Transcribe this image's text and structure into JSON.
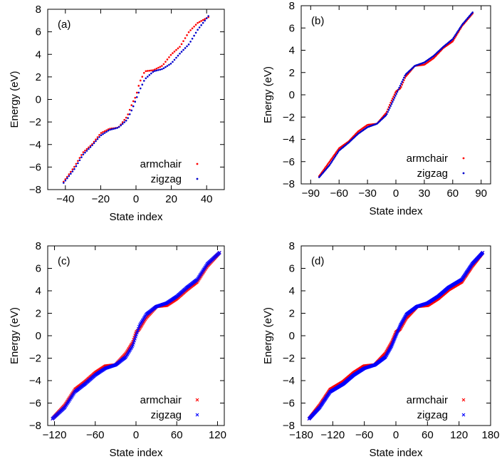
{
  "chart_data": [
    {
      "type": "scatter",
      "panel_label": "(a)",
      "xlabel": "State index",
      "ylabel": "Energy (eV)",
      "xlim": [
        -50,
        50
      ],
      "ylim": [
        -8,
        8
      ],
      "xticks": [
        -40,
        -20,
        0,
        20,
        40
      ],
      "yticks": [
        -8,
        -6,
        -4,
        -2,
        0,
        2,
        4,
        6,
        8
      ],
      "legend_position": "bottom-right",
      "marker": "dot",
      "series": [
        {
          "name": "armchair",
          "color": "#ff0000",
          "n": 82,
          "x": [
            -41,
            -35,
            -30,
            -25,
            -20,
            -15,
            -10,
            -5,
            -2,
            0,
            2,
            5,
            10,
            15,
            20,
            25,
            30,
            35,
            41
          ],
          "y": [
            -7.3,
            -6.0,
            -4.7,
            -4.0,
            -3.0,
            -2.6,
            -2.5,
            -1.5,
            -0.3,
            0.3,
            1.5,
            2.5,
            2.6,
            3.0,
            4.0,
            4.7,
            6.0,
            6.8,
            7.3
          ]
        },
        {
          "name": "zigzag",
          "color": "#0000cc",
          "n": 82,
          "x": [
            -41,
            -35,
            -30,
            -25,
            -20,
            -15,
            -10,
            -5,
            -2,
            0,
            2,
            5,
            10,
            15,
            20,
            25,
            30,
            35,
            41
          ],
          "y": [
            -7.4,
            -6.2,
            -4.9,
            -4.1,
            -3.2,
            -2.7,
            -2.5,
            -1.8,
            -0.8,
            0.0,
            0.8,
            1.8,
            2.5,
            2.7,
            3.2,
            4.1,
            4.9,
            6.2,
            7.4
          ]
        }
      ]
    },
    {
      "type": "scatter",
      "panel_label": "(b)",
      "xlabel": "State index",
      "ylabel": "Energy (eV)",
      "xlim": [
        -100,
        100
      ],
      "ylim": [
        -8,
        8
      ],
      "xticks": [
        -90,
        -60,
        -30,
        0,
        30,
        60,
        90
      ],
      "yticks": [
        -8,
        -6,
        -4,
        -2,
        0,
        2,
        4,
        6,
        8
      ],
      "legend_position": "bottom-right",
      "marker": "dot",
      "series": [
        {
          "name": "armchair",
          "color": "#ff0000",
          "n": 162,
          "x": [
            -81,
            -70,
            -60,
            -50,
            -40,
            -30,
            -20,
            -10,
            -5,
            0,
            5,
            10,
            20,
            30,
            40,
            50,
            60,
            70,
            81
          ],
          "y": [
            -7.3,
            -6.0,
            -4.8,
            -4.2,
            -3.3,
            -2.7,
            -2.6,
            -1.6,
            -0.6,
            0.3,
            0.6,
            1.6,
            2.6,
            2.7,
            3.3,
            4.2,
            4.8,
            6.2,
            7.3
          ]
        },
        {
          "name": "zigzag",
          "color": "#0000cc",
          "n": 162,
          "x": [
            -81,
            -70,
            -60,
            -50,
            -40,
            -30,
            -20,
            -10,
            -5,
            0,
            5,
            10,
            20,
            30,
            40,
            50,
            60,
            70,
            81
          ],
          "y": [
            -7.4,
            -6.3,
            -5.0,
            -4.3,
            -3.5,
            -2.9,
            -2.6,
            -1.8,
            -0.9,
            0.0,
            0.9,
            1.8,
            2.6,
            2.9,
            3.5,
            4.3,
            5.0,
            6.3,
            7.4
          ]
        }
      ]
    },
    {
      "type": "scatter",
      "panel_label": "(c)",
      "xlabel": "State index",
      "ylabel": "Energy (eV)",
      "xlim": [
        -130,
        130
      ],
      "ylim": [
        -8,
        8
      ],
      "xticks": [
        -120,
        -60,
        0,
        60,
        120
      ],
      "yticks": [
        -8,
        -6,
        -4,
        -2,
        0,
        2,
        4,
        6,
        8
      ],
      "legend_position": "bottom-right",
      "marker": "cross",
      "series": [
        {
          "name": "armchair",
          "color": "#ff0000",
          "n": 246,
          "x": [
            -123,
            -105,
            -90,
            -75,
            -60,
            -45,
            -30,
            -15,
            -5,
            0,
            5,
            15,
            30,
            45,
            60,
            75,
            90,
            105,
            123
          ],
          "y": [
            -7.4,
            -6.2,
            -4.8,
            -4.1,
            -3.3,
            -2.7,
            -2.6,
            -1.6,
            -0.6,
            0.3,
            0.6,
            1.6,
            2.6,
            2.7,
            3.3,
            4.1,
            4.8,
            6.2,
            7.4
          ]
        },
        {
          "name": "zigzag",
          "color": "#0000ff",
          "n": 246,
          "x": [
            -123,
            -105,
            -90,
            -75,
            -60,
            -45,
            -30,
            -15,
            -5,
            0,
            5,
            15,
            30,
            45,
            60,
            75,
            90,
            105,
            123
          ],
          "y": [
            -7.4,
            -6.4,
            -5.0,
            -4.3,
            -3.5,
            -2.9,
            -2.6,
            -1.9,
            -0.9,
            0.0,
            0.9,
            1.9,
            2.6,
            2.9,
            3.5,
            4.3,
            5.0,
            6.4,
            7.4
          ]
        }
      ]
    },
    {
      "type": "scatter",
      "panel_label": "(d)",
      "xlabel": "State index",
      "ylabel": "Energy (eV)",
      "xlim": [
        -180,
        180
      ],
      "ylim": [
        -8,
        8
      ],
      "xticks": [
        -180,
        -120,
        -60,
        0,
        60,
        120,
        180
      ],
      "yticks": [
        -8,
        -6,
        -4,
        -2,
        0,
        2,
        4,
        6,
        8
      ],
      "legend_position": "bottom-right",
      "marker": "cross",
      "series": [
        {
          "name": "armchair",
          "color": "#ff0000",
          "n": 330,
          "x": [
            -165,
            -145,
            -125,
            -100,
            -80,
            -60,
            -40,
            -20,
            -8,
            0,
            8,
            20,
            40,
            60,
            80,
            100,
            125,
            145,
            165
          ],
          "y": [
            -7.4,
            -6.2,
            -4.8,
            -4.1,
            -3.3,
            -2.7,
            -2.6,
            -1.6,
            -0.6,
            0.3,
            0.6,
            1.6,
            2.6,
            2.7,
            3.3,
            4.1,
            4.8,
            6.2,
            7.4
          ]
        },
        {
          "name": "zigzag",
          "color": "#0000ff",
          "n": 330,
          "x": [
            -165,
            -145,
            -125,
            -100,
            -80,
            -60,
            -40,
            -20,
            -8,
            0,
            8,
            20,
            40,
            60,
            80,
            100,
            125,
            145,
            165
          ],
          "y": [
            -7.4,
            -6.4,
            -5.0,
            -4.3,
            -3.5,
            -2.9,
            -2.6,
            -1.9,
            -0.9,
            0.0,
            0.9,
            1.9,
            2.6,
            2.9,
            3.5,
            4.3,
            5.0,
            6.4,
            7.4
          ]
        }
      ]
    }
  ]
}
